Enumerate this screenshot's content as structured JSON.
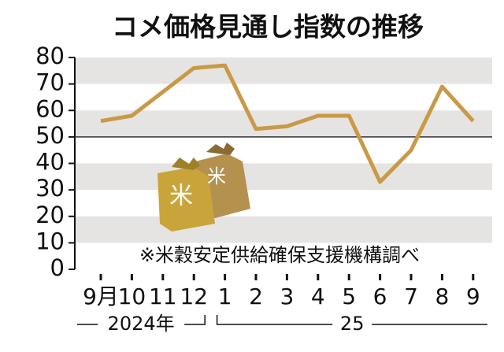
{
  "chart_data": {
    "type": "line",
    "title": "コメ価格見通し指数の推移",
    "note": "※米穀安定供給確保支援機構調べ",
    "categories": [
      "9月",
      "10",
      "11",
      "12",
      "1",
      "2",
      "3",
      "4",
      "5",
      "6",
      "7",
      "8",
      "9"
    ],
    "x_groups": [
      "2024年",
      "25"
    ],
    "series": [
      {
        "color": "#c99a45",
        "values": [
          56,
          58,
          67,
          76,
          77,
          53,
          54,
          58,
          58,
          33,
          45,
          69,
          56
        ]
      }
    ],
    "ylim": [
      0,
      80
    ],
    "yticks": [
      0,
      10,
      20,
      30,
      40,
      50,
      60,
      70,
      80
    ],
    "reference_line": 50
  }
}
